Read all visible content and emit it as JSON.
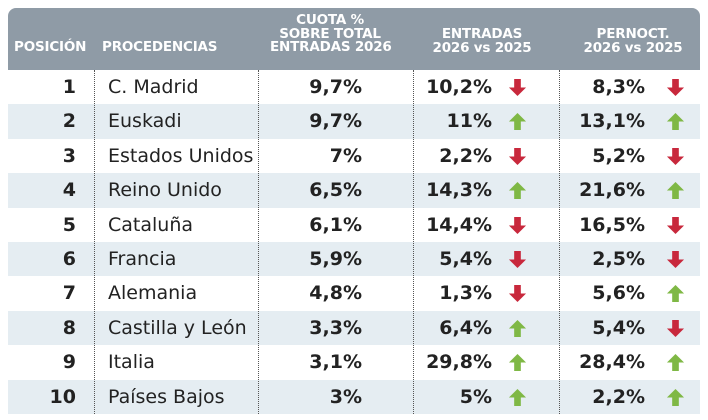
{
  "header": {
    "posicion": "POSICIÓN",
    "procedencias": "PROCEDENCIAS",
    "cuota": [
      "CUOTA %",
      "SOBRE TOTAL",
      "ENTRADAS 2026"
    ],
    "entradas": [
      "ENTRADAS",
      "2026 vs 2025"
    ],
    "pernoct": [
      "PERNOCT.",
      "2026 vs 2025"
    ]
  },
  "colors": {
    "header_bg": "#8f9ba6",
    "row_alt": "#e5edf2",
    "arrow_up": "#7fb845",
    "arrow_down": "#c8283c"
  },
  "rows": [
    {
      "pos": "1",
      "name": "C. Madrid",
      "share": "9,7%",
      "entradas": "10,2%",
      "entradas_trend": "down",
      "pernoct": "8,3%",
      "pernoct_trend": "down"
    },
    {
      "pos": "2",
      "name": "Euskadi",
      "share": "9,7%",
      "entradas": "11%",
      "entradas_trend": "up",
      "pernoct": "13,1%",
      "pernoct_trend": "up"
    },
    {
      "pos": "3",
      "name": "Estados Unidos",
      "share": "7%",
      "entradas": "2,2%",
      "entradas_trend": "down",
      "pernoct": "5,2%",
      "pernoct_trend": "down"
    },
    {
      "pos": "4",
      "name": "Reino Unido",
      "share": "6,5%",
      "entradas": "14,3%",
      "entradas_trend": "up",
      "pernoct": "21,6%",
      "pernoct_trend": "up"
    },
    {
      "pos": "5",
      "name": "Cataluña",
      "share": "6,1%",
      "entradas": "14,4%",
      "entradas_trend": "down",
      "pernoct": "16,5%",
      "pernoct_trend": "down"
    },
    {
      "pos": "6",
      "name": "Francia",
      "share": "5,9%",
      "entradas": "5,4%",
      "entradas_trend": "down",
      "pernoct": "2,5%",
      "pernoct_trend": "down"
    },
    {
      "pos": "7",
      "name": "Alemania",
      "share": "4,8%",
      "entradas": "1,3%",
      "entradas_trend": "down",
      "pernoct": "5,6%",
      "pernoct_trend": "up"
    },
    {
      "pos": "8",
      "name": "Castilla y León",
      "share": "3,3%",
      "entradas": "6,4%",
      "entradas_trend": "up",
      "pernoct": "5,4%",
      "pernoct_trend": "down"
    },
    {
      "pos": "9",
      "name": "Italia",
      "share": "3,1%",
      "entradas": "29,8%",
      "entradas_trend": "up",
      "pernoct": "28,4%",
      "pernoct_trend": "up"
    },
    {
      "pos": "10",
      "name": "Países Bajos",
      "share": "3%",
      "entradas": "5%",
      "entradas_trend": "up",
      "pernoct": "2,2%",
      "pernoct_trend": "up"
    }
  ]
}
